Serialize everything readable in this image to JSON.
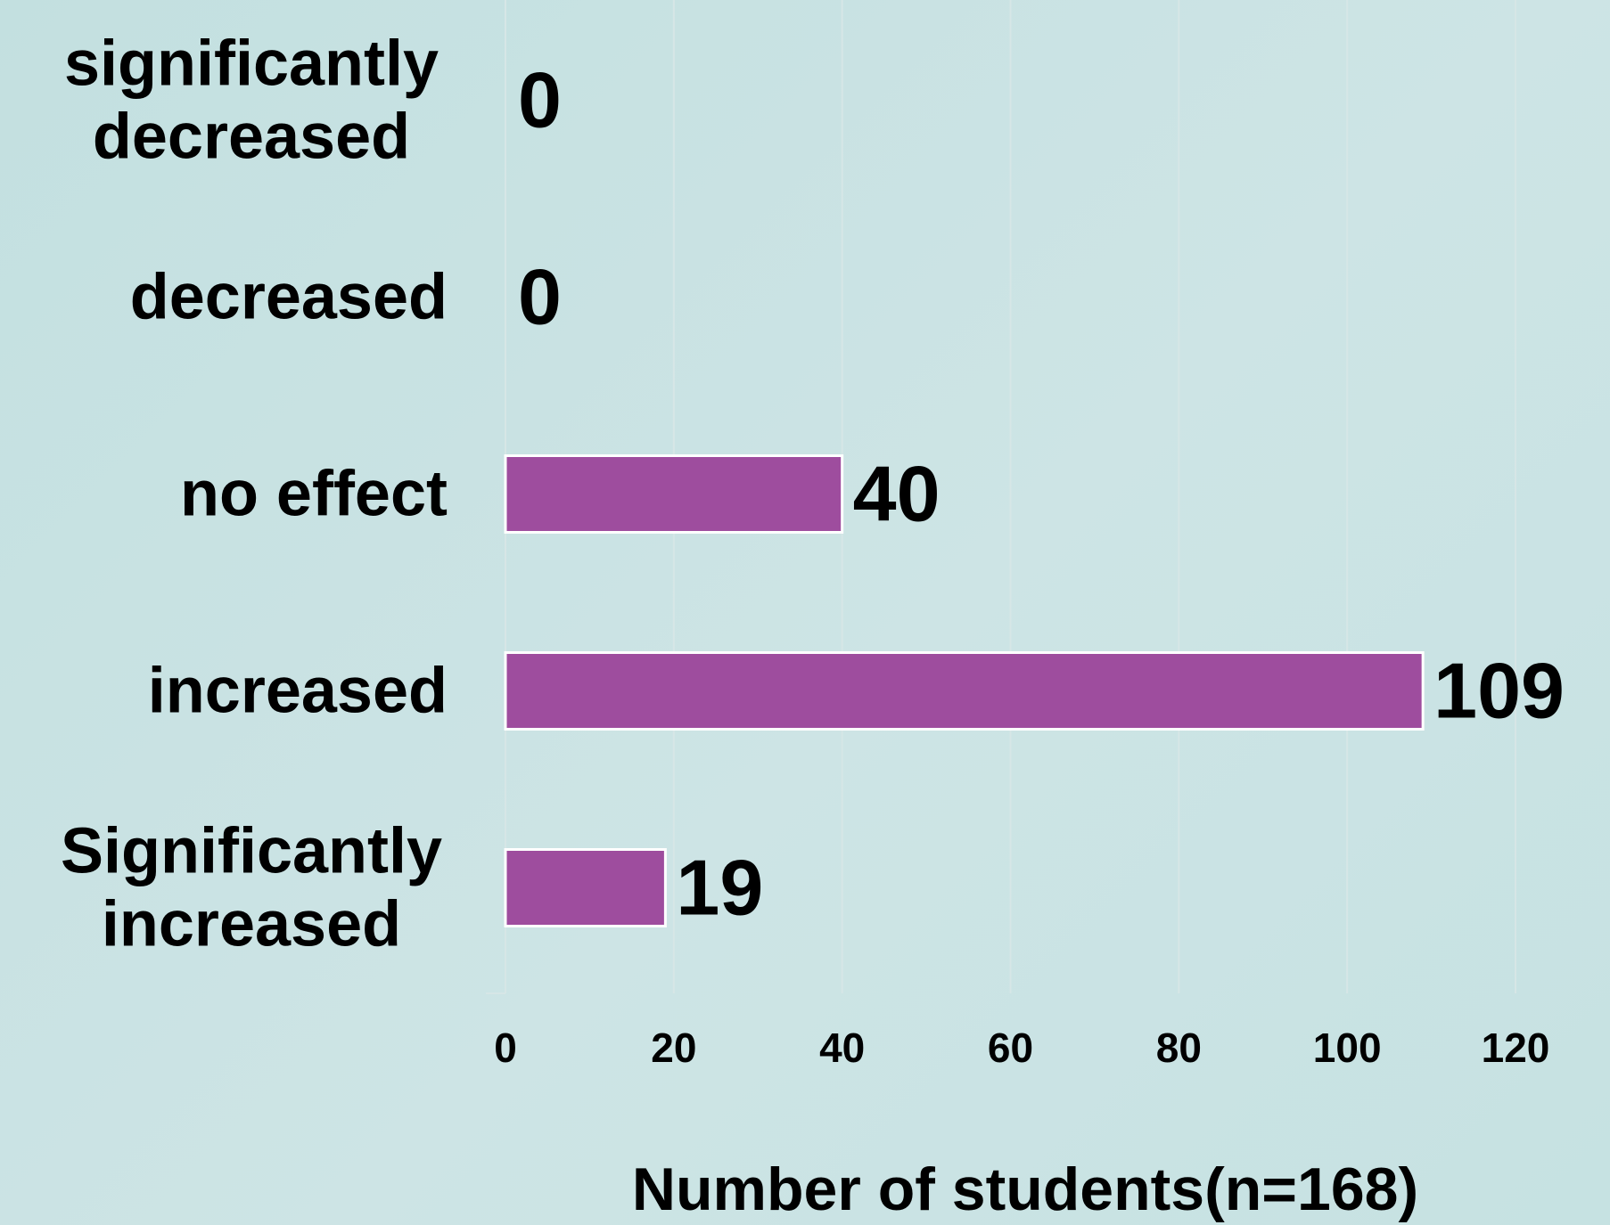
{
  "chart_data": {
    "type": "bar",
    "orientation": "horizontal",
    "categories": [
      [
        "significantly",
        "decreased"
      ],
      [
        "decreased"
      ],
      [
        "no effect"
      ],
      [
        "increased"
      ],
      [
        "Significantly",
        "increased"
      ]
    ],
    "values": [
      0,
      0,
      40,
      109,
      19
    ],
    "data_labels": [
      "0",
      "0",
      "40",
      "109",
      "19"
    ],
    "xlabel": "Number of students(n=168)",
    "ylabel": "",
    "title": "",
    "xlim": [
      0,
      120
    ],
    "xticks": [
      "0",
      "20",
      "40",
      "60",
      "80",
      "100",
      "120"
    ],
    "grid": "vertical",
    "legend": "none",
    "colors": {
      "bar": "#9e4d9e",
      "bar_outline": "#ffffff",
      "gridline": "#d6e6e6",
      "text": "#000000"
    }
  }
}
